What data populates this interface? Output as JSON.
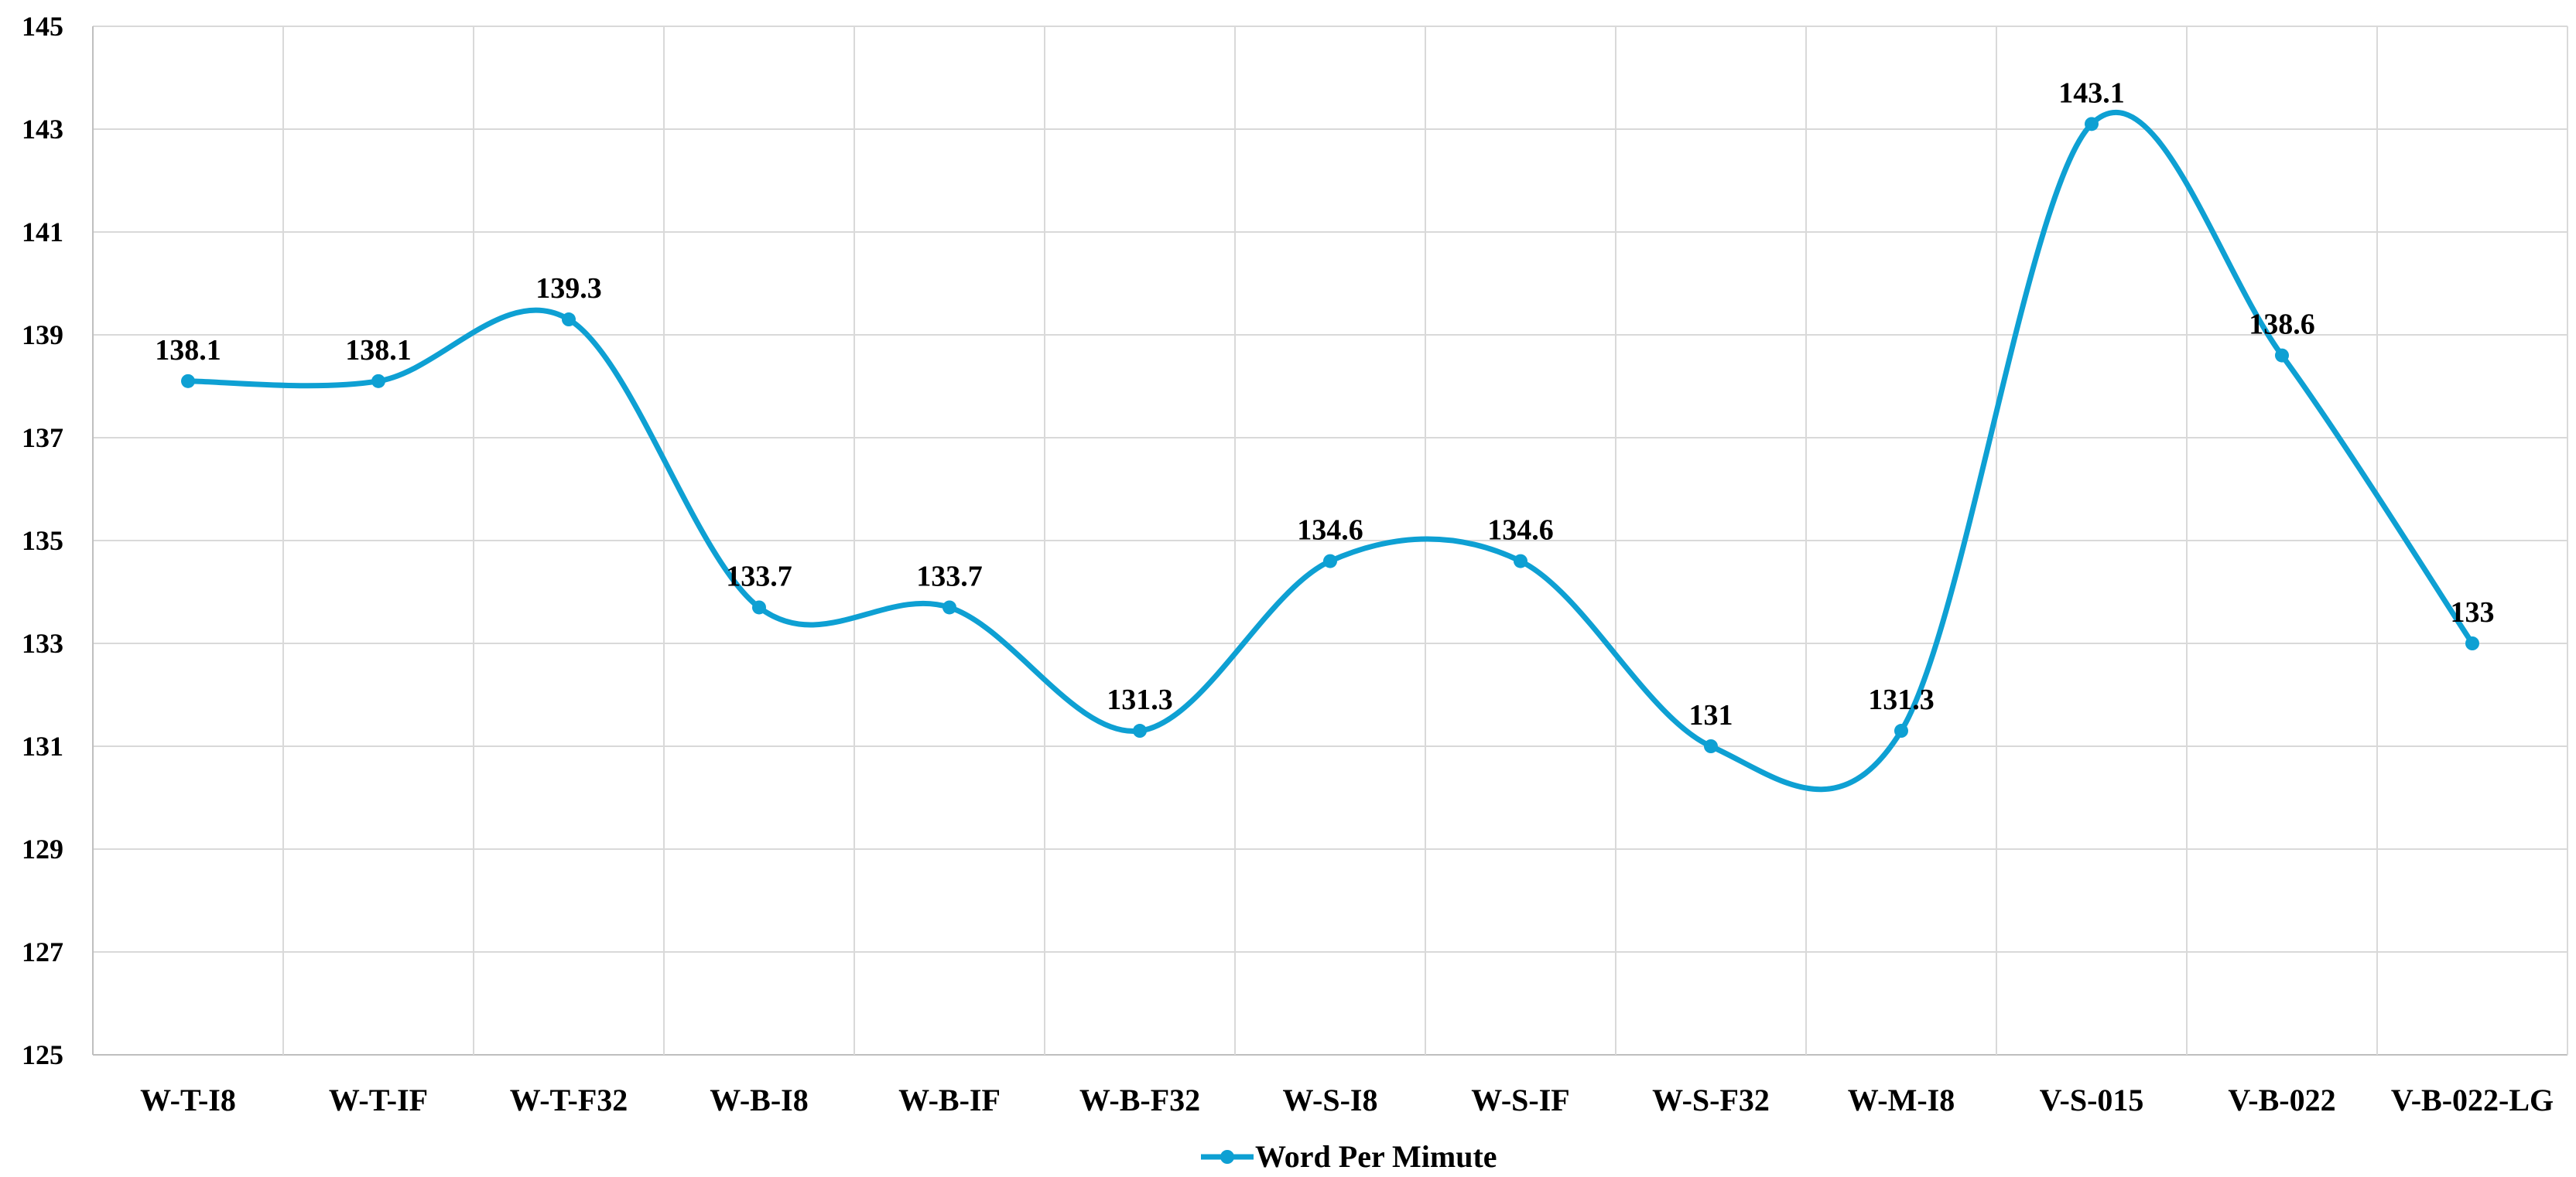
{
  "chart_data": {
    "type": "line",
    "categories": [
      "W-T-I8",
      "W-T-IF",
      "W-T-F32",
      "W-B-I8",
      "W-B-IF",
      "W-B-F32",
      "W-S-I8",
      "W-S-IF",
      "W-S-F32",
      "W-M-I8",
      "V-S-015",
      "V-B-022",
      "V-B-022-LG"
    ],
    "series": [
      {
        "name": "Word Per Mimute",
        "values": [
          138.1,
          138.1,
          139.3,
          133.7,
          133.7,
          131.3,
          134.6,
          134.6,
          131,
          131.3,
          143.1,
          138.6,
          133
        ],
        "labels": [
          "138.1",
          "138.1",
          "139.3",
          "133.7",
          "133.7",
          "131.3",
          "134.6",
          "134.6",
          "131",
          "131.3",
          "143.1",
          "138.6",
          "133"
        ],
        "color": "#0ea0d3"
      }
    ],
    "ylim": [
      125,
      145
    ],
    "yticks": [
      125,
      127,
      129,
      131,
      133,
      135,
      137,
      139,
      141,
      143,
      145
    ],
    "ytick_labels": [
      "125",
      "127",
      "129",
      "131",
      "133",
      "135",
      "137",
      "139",
      "141",
      "143",
      "145"
    ],
    "grid": true,
    "smooth": true,
    "legend_position": "bottom-center",
    "colors": {
      "series": "#0ea0d3",
      "grid": "#d9d9d9",
      "axis": "#bfbfbf"
    }
  }
}
